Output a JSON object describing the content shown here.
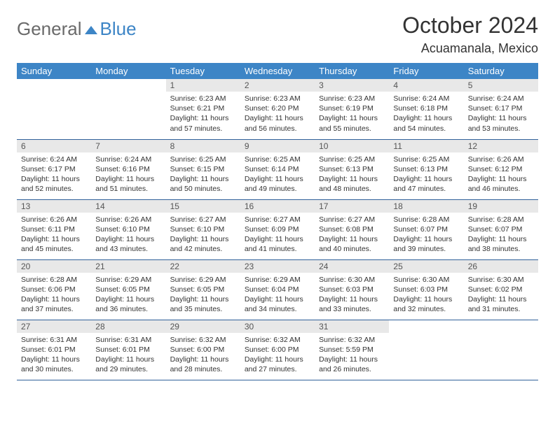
{
  "logo": {
    "general": "General",
    "blue": "Blue"
  },
  "title": "October 2024",
  "location": "Acuamanala, Mexico",
  "colors": {
    "header_bg": "#3d85c6",
    "header_text": "#ffffff",
    "daynum_bg": "#e8e8e8",
    "row_border": "#30619a",
    "logo_gray": "#6a6a6a",
    "logo_blue": "#3d85c6"
  },
  "weekdays": [
    "Sunday",
    "Monday",
    "Tuesday",
    "Wednesday",
    "Thursday",
    "Friday",
    "Saturday"
  ],
  "weeks": [
    [
      null,
      null,
      {
        "n": "1",
        "sr": "Sunrise: 6:23 AM",
        "ss": "Sunset: 6:21 PM",
        "dl": "Daylight: 11 hours and 57 minutes."
      },
      {
        "n": "2",
        "sr": "Sunrise: 6:23 AM",
        "ss": "Sunset: 6:20 PM",
        "dl": "Daylight: 11 hours and 56 minutes."
      },
      {
        "n": "3",
        "sr": "Sunrise: 6:23 AM",
        "ss": "Sunset: 6:19 PM",
        "dl": "Daylight: 11 hours and 55 minutes."
      },
      {
        "n": "4",
        "sr": "Sunrise: 6:24 AM",
        "ss": "Sunset: 6:18 PM",
        "dl": "Daylight: 11 hours and 54 minutes."
      },
      {
        "n": "5",
        "sr": "Sunrise: 6:24 AM",
        "ss": "Sunset: 6:17 PM",
        "dl": "Daylight: 11 hours and 53 minutes."
      }
    ],
    [
      {
        "n": "6",
        "sr": "Sunrise: 6:24 AM",
        "ss": "Sunset: 6:17 PM",
        "dl": "Daylight: 11 hours and 52 minutes."
      },
      {
        "n": "7",
        "sr": "Sunrise: 6:24 AM",
        "ss": "Sunset: 6:16 PM",
        "dl": "Daylight: 11 hours and 51 minutes."
      },
      {
        "n": "8",
        "sr": "Sunrise: 6:25 AM",
        "ss": "Sunset: 6:15 PM",
        "dl": "Daylight: 11 hours and 50 minutes."
      },
      {
        "n": "9",
        "sr": "Sunrise: 6:25 AM",
        "ss": "Sunset: 6:14 PM",
        "dl": "Daylight: 11 hours and 49 minutes."
      },
      {
        "n": "10",
        "sr": "Sunrise: 6:25 AM",
        "ss": "Sunset: 6:13 PM",
        "dl": "Daylight: 11 hours and 48 minutes."
      },
      {
        "n": "11",
        "sr": "Sunrise: 6:25 AM",
        "ss": "Sunset: 6:13 PM",
        "dl": "Daylight: 11 hours and 47 minutes."
      },
      {
        "n": "12",
        "sr": "Sunrise: 6:26 AM",
        "ss": "Sunset: 6:12 PM",
        "dl": "Daylight: 11 hours and 46 minutes."
      }
    ],
    [
      {
        "n": "13",
        "sr": "Sunrise: 6:26 AM",
        "ss": "Sunset: 6:11 PM",
        "dl": "Daylight: 11 hours and 45 minutes."
      },
      {
        "n": "14",
        "sr": "Sunrise: 6:26 AM",
        "ss": "Sunset: 6:10 PM",
        "dl": "Daylight: 11 hours and 43 minutes."
      },
      {
        "n": "15",
        "sr": "Sunrise: 6:27 AM",
        "ss": "Sunset: 6:10 PM",
        "dl": "Daylight: 11 hours and 42 minutes."
      },
      {
        "n": "16",
        "sr": "Sunrise: 6:27 AM",
        "ss": "Sunset: 6:09 PM",
        "dl": "Daylight: 11 hours and 41 minutes."
      },
      {
        "n": "17",
        "sr": "Sunrise: 6:27 AM",
        "ss": "Sunset: 6:08 PM",
        "dl": "Daylight: 11 hours and 40 minutes."
      },
      {
        "n": "18",
        "sr": "Sunrise: 6:28 AM",
        "ss": "Sunset: 6:07 PM",
        "dl": "Daylight: 11 hours and 39 minutes."
      },
      {
        "n": "19",
        "sr": "Sunrise: 6:28 AM",
        "ss": "Sunset: 6:07 PM",
        "dl": "Daylight: 11 hours and 38 minutes."
      }
    ],
    [
      {
        "n": "20",
        "sr": "Sunrise: 6:28 AM",
        "ss": "Sunset: 6:06 PM",
        "dl": "Daylight: 11 hours and 37 minutes."
      },
      {
        "n": "21",
        "sr": "Sunrise: 6:29 AM",
        "ss": "Sunset: 6:05 PM",
        "dl": "Daylight: 11 hours and 36 minutes."
      },
      {
        "n": "22",
        "sr": "Sunrise: 6:29 AM",
        "ss": "Sunset: 6:05 PM",
        "dl": "Daylight: 11 hours and 35 minutes."
      },
      {
        "n": "23",
        "sr": "Sunrise: 6:29 AM",
        "ss": "Sunset: 6:04 PM",
        "dl": "Daylight: 11 hours and 34 minutes."
      },
      {
        "n": "24",
        "sr": "Sunrise: 6:30 AM",
        "ss": "Sunset: 6:03 PM",
        "dl": "Daylight: 11 hours and 33 minutes."
      },
      {
        "n": "25",
        "sr": "Sunrise: 6:30 AM",
        "ss": "Sunset: 6:03 PM",
        "dl": "Daylight: 11 hours and 32 minutes."
      },
      {
        "n": "26",
        "sr": "Sunrise: 6:30 AM",
        "ss": "Sunset: 6:02 PM",
        "dl": "Daylight: 11 hours and 31 minutes."
      }
    ],
    [
      {
        "n": "27",
        "sr": "Sunrise: 6:31 AM",
        "ss": "Sunset: 6:01 PM",
        "dl": "Daylight: 11 hours and 30 minutes."
      },
      {
        "n": "28",
        "sr": "Sunrise: 6:31 AM",
        "ss": "Sunset: 6:01 PM",
        "dl": "Daylight: 11 hours and 29 minutes."
      },
      {
        "n": "29",
        "sr": "Sunrise: 6:32 AM",
        "ss": "Sunset: 6:00 PM",
        "dl": "Daylight: 11 hours and 28 minutes."
      },
      {
        "n": "30",
        "sr": "Sunrise: 6:32 AM",
        "ss": "Sunset: 6:00 PM",
        "dl": "Daylight: 11 hours and 27 minutes."
      },
      {
        "n": "31",
        "sr": "Sunrise: 6:32 AM",
        "ss": "Sunset: 5:59 PM",
        "dl": "Daylight: 11 hours and 26 minutes."
      },
      null,
      null
    ]
  ]
}
